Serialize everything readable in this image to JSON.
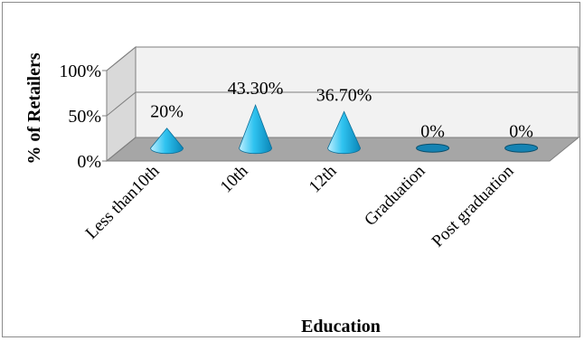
{
  "chart_data": {
    "type": "bar",
    "bar_shape": "3d-cone",
    "categories": [
      "Less than10th",
      "10th",
      "12th",
      "Graduation",
      "Post graduation"
    ],
    "values": [
      20,
      43.3,
      36.7,
      0,
      0
    ],
    "data_labels": [
      "20%",
      "43.30%",
      "36.70%",
      "0%",
      "0%"
    ],
    "ylim": [
      0,
      100
    ],
    "yticks": [
      "0%",
      "50%",
      "100%"
    ],
    "xlabel": "Education",
    "ylabel": "% of Retailers",
    "grid": true,
    "legend": "none",
    "colors": {
      "cone_light": "#bfefff",
      "cone_mid": "#2fc3f0",
      "cone_dark": "#0a86b8",
      "floor": "#a6a6a6",
      "wall": "#f2f2f2",
      "grid": "#7f7f7f",
      "frame": "#8c8c8c"
    }
  }
}
